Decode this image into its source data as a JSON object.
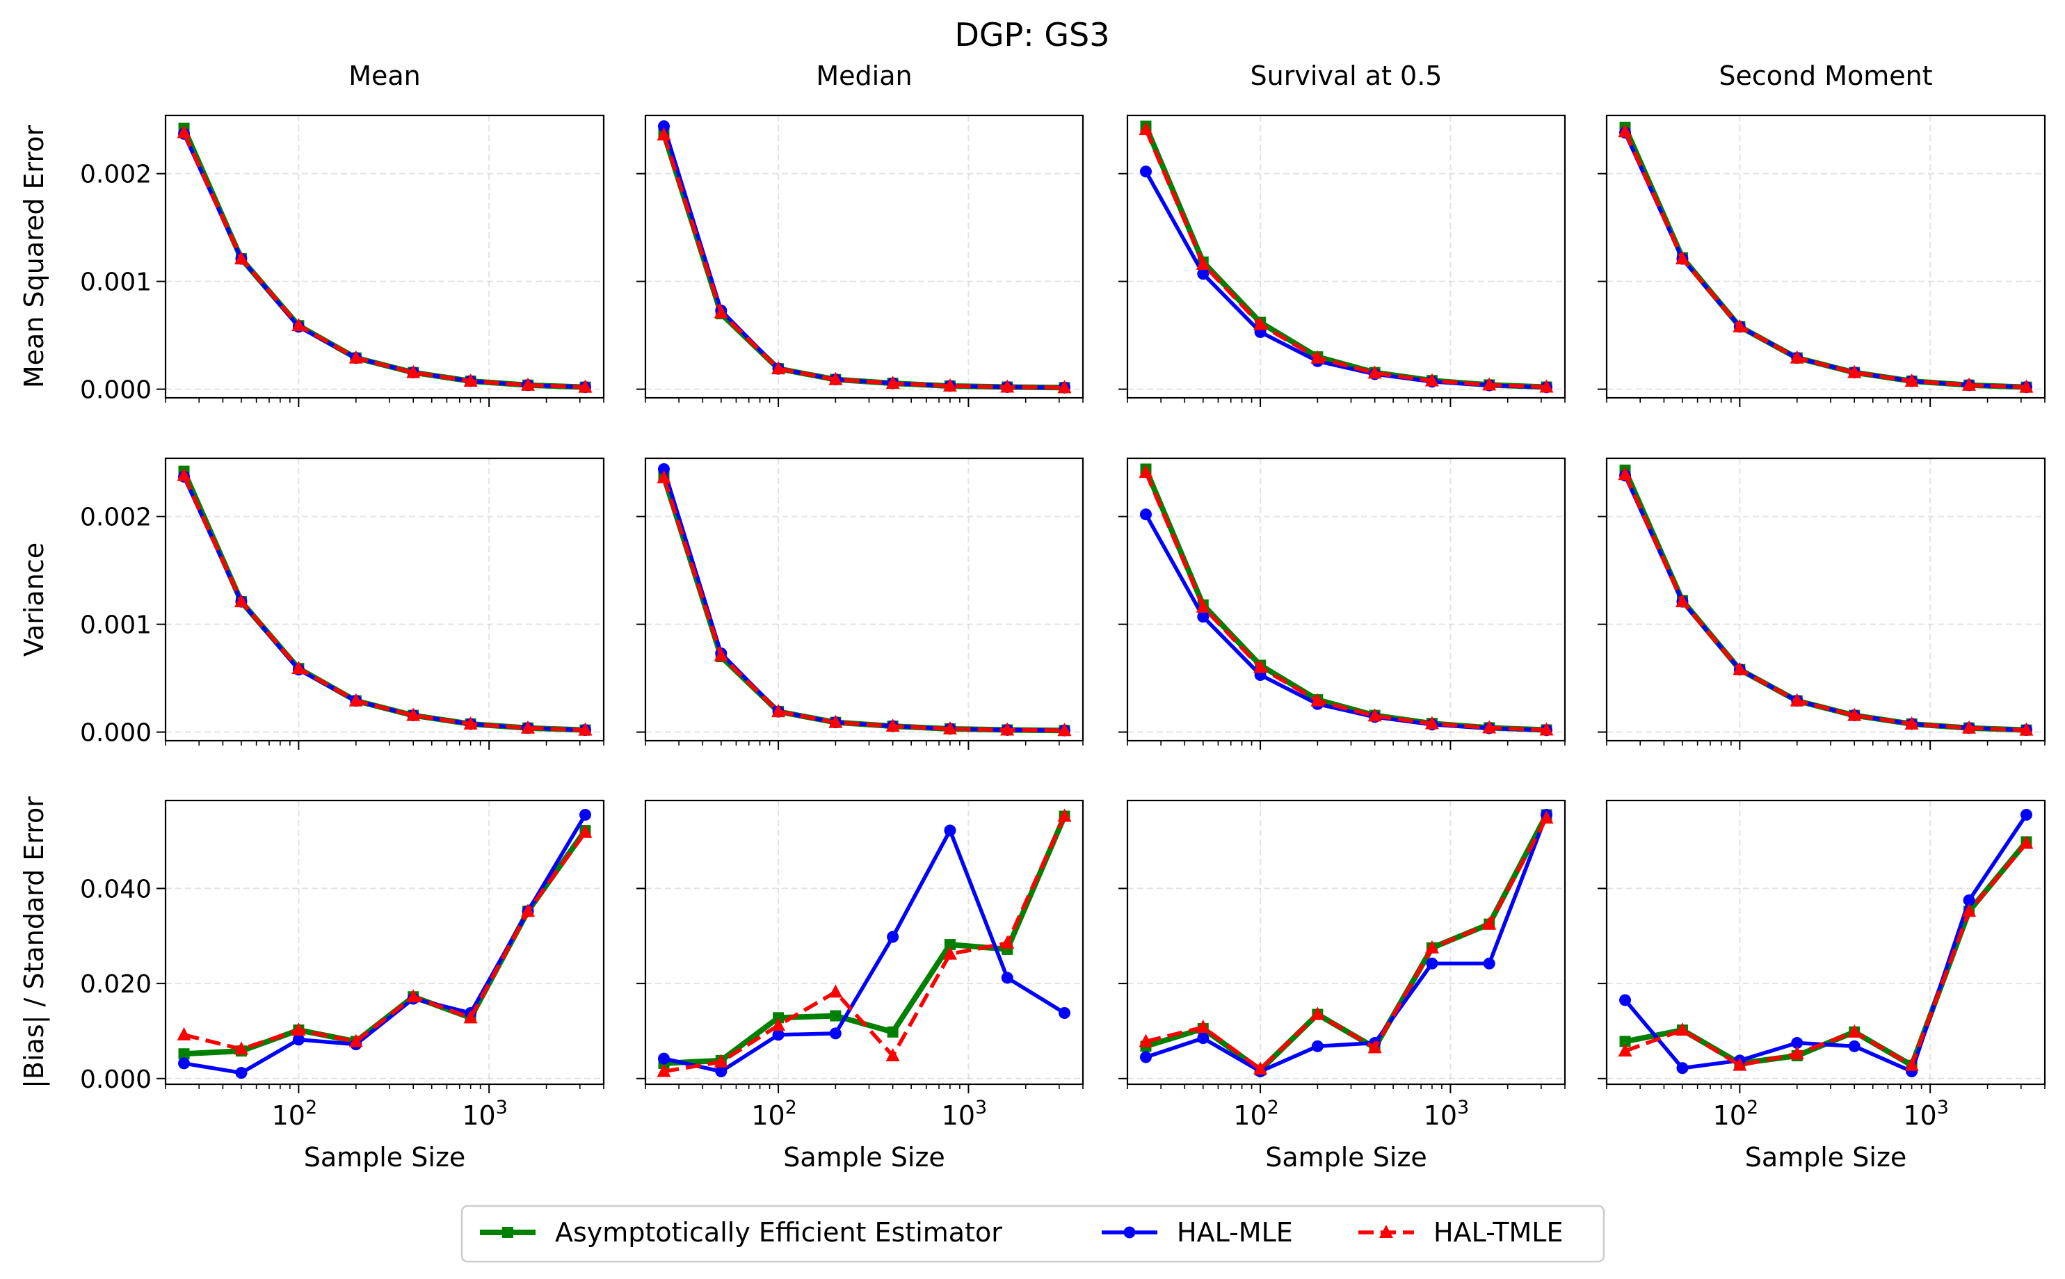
{
  "figure": {
    "title": "DGP: GS3",
    "column_titles": [
      "Mean",
      "Median",
      "Survival at 0.5",
      "Second Moment"
    ],
    "row_ylabels": [
      "Mean Squared Error",
      "Variance",
      "|Bias| / Standard Error"
    ],
    "xlabel": "Sample Size",
    "x_tick_values": [
      100,
      1000
    ],
    "x_tick_base": "10",
    "x_tick_exponents": [
      "2",
      "3"
    ],
    "x_values": [
      25,
      50,
      100,
      200,
      400,
      800,
      1600,
      3200
    ],
    "xlim": [
      20,
      4000
    ],
    "row_ylims": [
      [
        -8e-05,
        0.00254
      ],
      [
        -8e-05,
        0.00254
      ],
      [
        -0.0012,
        0.0585
      ]
    ],
    "row_yticks": [
      {
        "values": [
          0,
          0.001,
          0.002
        ],
        "labels": [
          "0.000",
          "0.001",
          "0.002"
        ]
      },
      {
        "values": [
          0,
          0.001,
          0.002
        ],
        "labels": [
          "0.000",
          "0.001",
          "0.002"
        ]
      },
      {
        "values": [
          0,
          0.02,
          0.04
        ],
        "labels": [
          "0.000",
          "0.020",
          "0.040"
        ]
      }
    ]
  },
  "legend": {
    "placement": "bottom-center",
    "entries": [
      {
        "label": "Asymptotically Efficient Estimator",
        "color": "#008000",
        "marker": "square",
        "dash": "solid"
      },
      {
        "label": "HAL-MLE",
        "color": "#0000ff",
        "marker": "circle",
        "dash": "solid"
      },
      {
        "label": "HAL-TMLE",
        "color": "#ff0000",
        "marker": "triangle",
        "dash": "dashed"
      }
    ]
  },
  "chart_data": [
    {
      "type": "line",
      "title": "Mean",
      "ylabel": "Mean Squared Error",
      "xlabel": "",
      "xscale": "log",
      "grid": true,
      "x": [
        25,
        50,
        100,
        200,
        400,
        800,
        1600,
        3200
      ],
      "series": [
        {
          "name": "Asymptotically Efficient Estimator",
          "values": [
            0.00242,
            0.00121,
            0.00059,
            0.00029,
            0.000155,
            7.5e-05,
            3.8e-05,
            1.9e-05
          ]
        },
        {
          "name": "HAL-MLE",
          "values": [
            0.00237,
            0.00121,
            0.00058,
            0.00029,
            0.000155,
            7.5e-05,
            3.8e-05,
            1.9e-05
          ]
        },
        {
          "name": "HAL-TMLE",
          "values": [
            0.00238,
            0.00121,
            0.00059,
            0.00029,
            0.000155,
            7.5e-05,
            3.8e-05,
            1.9e-05
          ]
        }
      ]
    },
    {
      "type": "line",
      "title": "Median",
      "ylabel": "",
      "xlabel": "",
      "xscale": "log",
      "grid": true,
      "x": [
        25,
        50,
        100,
        200,
        400,
        800,
        1600,
        3200
      ],
      "series": [
        {
          "name": "Asymptotically Efficient Estimator",
          "values": [
            0.00237,
            0.0007,
            0.00019,
            9e-05,
            5.5e-05,
            3e-05,
            2e-05,
            1.5e-05
          ]
        },
        {
          "name": "HAL-MLE",
          "values": [
            0.00244,
            0.00073,
            0.00019,
            9e-05,
            5.5e-05,
            3e-05,
            2e-05,
            1.5e-05
          ]
        },
        {
          "name": "HAL-TMLE",
          "values": [
            0.00236,
            0.00071,
            0.00019,
            9e-05,
            5.5e-05,
            3e-05,
            2e-05,
            1.5e-05
          ]
        }
      ]
    },
    {
      "type": "line",
      "title": "Survival at 0.5",
      "ylabel": "",
      "xlabel": "",
      "xscale": "log",
      "grid": true,
      "x": [
        25,
        50,
        100,
        200,
        400,
        800,
        1600,
        3200
      ],
      "series": [
        {
          "name": "Asymptotically Efficient Estimator",
          "values": [
            0.00244,
            0.00118,
            0.00062,
            0.0003,
            0.000155,
            8e-05,
            4e-05,
            2e-05
          ]
        },
        {
          "name": "HAL-MLE",
          "values": [
            0.00202,
            0.00107,
            0.00053,
            0.00026,
            0.00014,
            7e-05,
            3.5e-05,
            1.8e-05
          ]
        },
        {
          "name": "HAL-TMLE",
          "values": [
            0.00241,
            0.00116,
            0.0006,
            0.00029,
            0.00015,
            7.8e-05,
            4e-05,
            2e-05
          ]
        }
      ]
    },
    {
      "type": "line",
      "title": "Second Moment",
      "ylabel": "",
      "xlabel": "",
      "xscale": "log",
      "grid": true,
      "x": [
        25,
        50,
        100,
        200,
        400,
        800,
        1600,
        3200
      ],
      "series": [
        {
          "name": "Asymptotically Efficient Estimator",
          "values": [
            0.00243,
            0.00122,
            0.00058,
            0.00029,
            0.000155,
            7.5e-05,
            3.8e-05,
            1.9e-05
          ]
        },
        {
          "name": "HAL-MLE",
          "values": [
            0.00238,
            0.00121,
            0.00058,
            0.00029,
            0.000155,
            7.5e-05,
            3.8e-05,
            1.9e-05
          ]
        },
        {
          "name": "HAL-TMLE",
          "values": [
            0.00239,
            0.00121,
            0.00058,
            0.00029,
            0.000155,
            7.5e-05,
            3.8e-05,
            1.9e-05
          ]
        }
      ]
    },
    {
      "type": "line",
      "title": "",
      "ylabel": "Variance",
      "xlabel": "",
      "xscale": "log",
      "grid": true,
      "x": [
        25,
        50,
        100,
        200,
        400,
        800,
        1600,
        3200
      ],
      "series": [
        {
          "name": "Asymptotically Efficient Estimator",
          "values": [
            0.00242,
            0.00121,
            0.00059,
            0.00029,
            0.000155,
            7.5e-05,
            3.8e-05,
            1.9e-05
          ]
        },
        {
          "name": "HAL-MLE",
          "values": [
            0.00237,
            0.00121,
            0.00058,
            0.00029,
            0.000155,
            7.5e-05,
            3.8e-05,
            1.9e-05
          ]
        },
        {
          "name": "HAL-TMLE",
          "values": [
            0.00238,
            0.00121,
            0.00059,
            0.00029,
            0.000155,
            7.5e-05,
            3.8e-05,
            1.9e-05
          ]
        }
      ]
    },
    {
      "type": "line",
      "title": "",
      "ylabel": "",
      "xlabel": "",
      "xscale": "log",
      "grid": true,
      "x": [
        25,
        50,
        100,
        200,
        400,
        800,
        1600,
        3200
      ],
      "series": [
        {
          "name": "Asymptotically Efficient Estimator",
          "values": [
            0.00237,
            0.0007,
            0.00019,
            9e-05,
            5.5e-05,
            3e-05,
            2e-05,
            1.5e-05
          ]
        },
        {
          "name": "HAL-MLE",
          "values": [
            0.00244,
            0.00073,
            0.00019,
            9e-05,
            5.5e-05,
            3e-05,
            2e-05,
            1.5e-05
          ]
        },
        {
          "name": "HAL-TMLE",
          "values": [
            0.00236,
            0.00071,
            0.00019,
            9e-05,
            5.5e-05,
            3e-05,
            2e-05,
            1.5e-05
          ]
        }
      ]
    },
    {
      "type": "line",
      "title": "",
      "ylabel": "",
      "xlabel": "",
      "xscale": "log",
      "grid": true,
      "x": [
        25,
        50,
        100,
        200,
        400,
        800,
        1600,
        3200
      ],
      "series": [
        {
          "name": "Asymptotically Efficient Estimator",
          "values": [
            0.00244,
            0.00118,
            0.00062,
            0.0003,
            0.000155,
            8e-05,
            4e-05,
            2e-05
          ]
        },
        {
          "name": "HAL-MLE",
          "values": [
            0.00202,
            0.00107,
            0.00053,
            0.00026,
            0.00014,
            7e-05,
            3.5e-05,
            1.8e-05
          ]
        },
        {
          "name": "HAL-TMLE",
          "values": [
            0.00241,
            0.00116,
            0.0006,
            0.00029,
            0.00015,
            7.8e-05,
            4e-05,
            2e-05
          ]
        }
      ]
    },
    {
      "type": "line",
      "title": "",
      "ylabel": "",
      "xlabel": "",
      "xscale": "log",
      "grid": true,
      "x": [
        25,
        50,
        100,
        200,
        400,
        800,
        1600,
        3200
      ],
      "series": [
        {
          "name": "Asymptotically Efficient Estimator",
          "values": [
            0.00243,
            0.00122,
            0.00058,
            0.00029,
            0.000155,
            7.5e-05,
            3.8e-05,
            1.9e-05
          ]
        },
        {
          "name": "HAL-MLE",
          "values": [
            0.00238,
            0.00121,
            0.00058,
            0.00029,
            0.000155,
            7.5e-05,
            3.8e-05,
            1.9e-05
          ]
        },
        {
          "name": "HAL-TMLE",
          "values": [
            0.00239,
            0.00121,
            0.00058,
            0.00029,
            0.000155,
            7.5e-05,
            3.8e-05,
            1.9e-05
          ]
        }
      ]
    },
    {
      "type": "line",
      "title": "",
      "ylabel": "|Bias| / Standard Error",
      "xlabel": "Sample Size",
      "xscale": "log",
      "grid": true,
      "x": [
        25,
        50,
        100,
        200,
        400,
        800,
        1600,
        3200
      ],
      "series": [
        {
          "name": "Asymptotically Efficient Estimator",
          "values": [
            0.0052,
            0.0058,
            0.0102,
            0.0078,
            0.0172,
            0.0128,
            0.0352,
            0.0522
          ]
        },
        {
          "name": "HAL-MLE",
          "values": [
            0.0032,
            0.0012,
            0.0082,
            0.0072,
            0.0168,
            0.0138,
            0.0352,
            0.0555
          ]
        },
        {
          "name": "HAL-TMLE",
          "values": [
            0.0092,
            0.0062,
            0.0102,
            0.0078,
            0.0172,
            0.0128,
            0.0352,
            0.0518
          ]
        }
      ]
    },
    {
      "type": "line",
      "title": "",
      "ylabel": "",
      "xlabel": "Sample Size",
      "xscale": "log",
      "grid": true,
      "x": [
        25,
        50,
        100,
        200,
        400,
        800,
        1600,
        3200
      ],
      "series": [
        {
          "name": "Asymptotically Efficient Estimator",
          "values": [
            0.0032,
            0.0038,
            0.0128,
            0.0132,
            0.0098,
            0.0282,
            0.0272,
            0.0552
          ]
        },
        {
          "name": "HAL-MLE",
          "values": [
            0.0042,
            0.0015,
            0.0092,
            0.0095,
            0.0298,
            0.0522,
            0.0212,
            0.0138
          ]
        },
        {
          "name": "HAL-TMLE",
          "values": [
            0.0015,
            0.0035,
            0.0112,
            0.0182,
            0.0048,
            0.0262,
            0.0285,
            0.0552
          ]
        }
      ]
    },
    {
      "type": "line",
      "title": "",
      "ylabel": "",
      "xlabel": "Sample Size",
      "xscale": "log",
      "grid": true,
      "x": [
        25,
        50,
        100,
        200,
        400,
        800,
        1600,
        3200
      ],
      "series": [
        {
          "name": "Asymptotically Efficient Estimator",
          "values": [
            0.0068,
            0.0105,
            0.0018,
            0.0135,
            0.0065,
            0.0275,
            0.0325,
            0.0555
          ]
        },
        {
          "name": "HAL-MLE",
          "values": [
            0.0045,
            0.0085,
            0.0015,
            0.0068,
            0.0075,
            0.0242,
            0.0242,
            0.0555
          ]
        },
        {
          "name": "HAL-TMLE",
          "values": [
            0.0078,
            0.0108,
            0.002,
            0.0135,
            0.0065,
            0.0275,
            0.0325,
            0.0548
          ]
        }
      ]
    },
    {
      "type": "line",
      "title": "",
      "ylabel": "",
      "xlabel": "Sample Size",
      "xscale": "log",
      "grid": true,
      "x": [
        25,
        50,
        100,
        200,
        400,
        800,
        1600,
        3200
      ],
      "series": [
        {
          "name": "Asymptotically Efficient Estimator",
          "values": [
            0.0078,
            0.0102,
            0.0032,
            0.0048,
            0.0098,
            0.0028,
            0.0352,
            0.0498
          ]
        },
        {
          "name": "HAL-MLE",
          "values": [
            0.0165,
            0.0022,
            0.0038,
            0.0075,
            0.0068,
            0.0015,
            0.0375,
            0.0555
          ]
        },
        {
          "name": "HAL-TMLE",
          "values": [
            0.0058,
            0.0102,
            0.0028,
            0.0052,
            0.0098,
            0.0028,
            0.0352,
            0.0495
          ]
        }
      ]
    }
  ]
}
